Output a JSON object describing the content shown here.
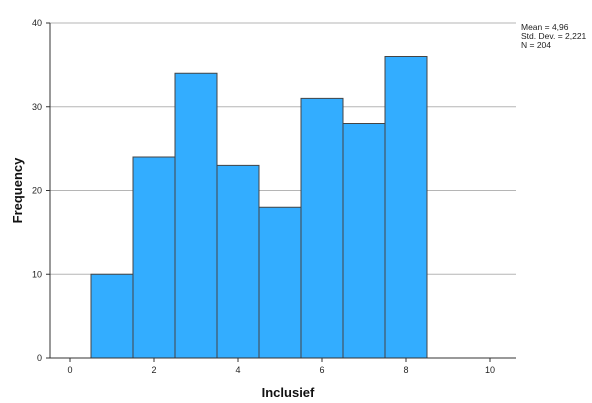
{
  "chart_data": {
    "type": "bar",
    "subtype": "histogram",
    "xlabel": "Inclusief",
    "ylabel": "Frequency",
    "xlim": [
      0,
      10
    ],
    "ylim": [
      0,
      40
    ],
    "x_ticks": [
      "0",
      "2",
      "4",
      "6",
      "8",
      "10"
    ],
    "y_ticks": [
      "0",
      "10",
      "20",
      "30",
      "40"
    ],
    "grid": "horizontal",
    "bin_width": 1,
    "bins": [
      {
        "center": 1,
        "value": 10
      },
      {
        "center": 2,
        "value": 24
      },
      {
        "center": 3,
        "value": 34
      },
      {
        "center": 4,
        "value": 23
      },
      {
        "center": 5,
        "value": 18
      },
      {
        "center": 6,
        "value": 31
      },
      {
        "center": 7,
        "value": 28
      },
      {
        "center": 8,
        "value": 36
      }
    ],
    "bar_color": "#33adff",
    "bar_edge_color": "#444444",
    "stats": {
      "mean": "Mean = 4,96",
      "std": "Std. Dev. = 2,221",
      "n": "N = 204"
    },
    "stats_placement": "top-right"
  }
}
